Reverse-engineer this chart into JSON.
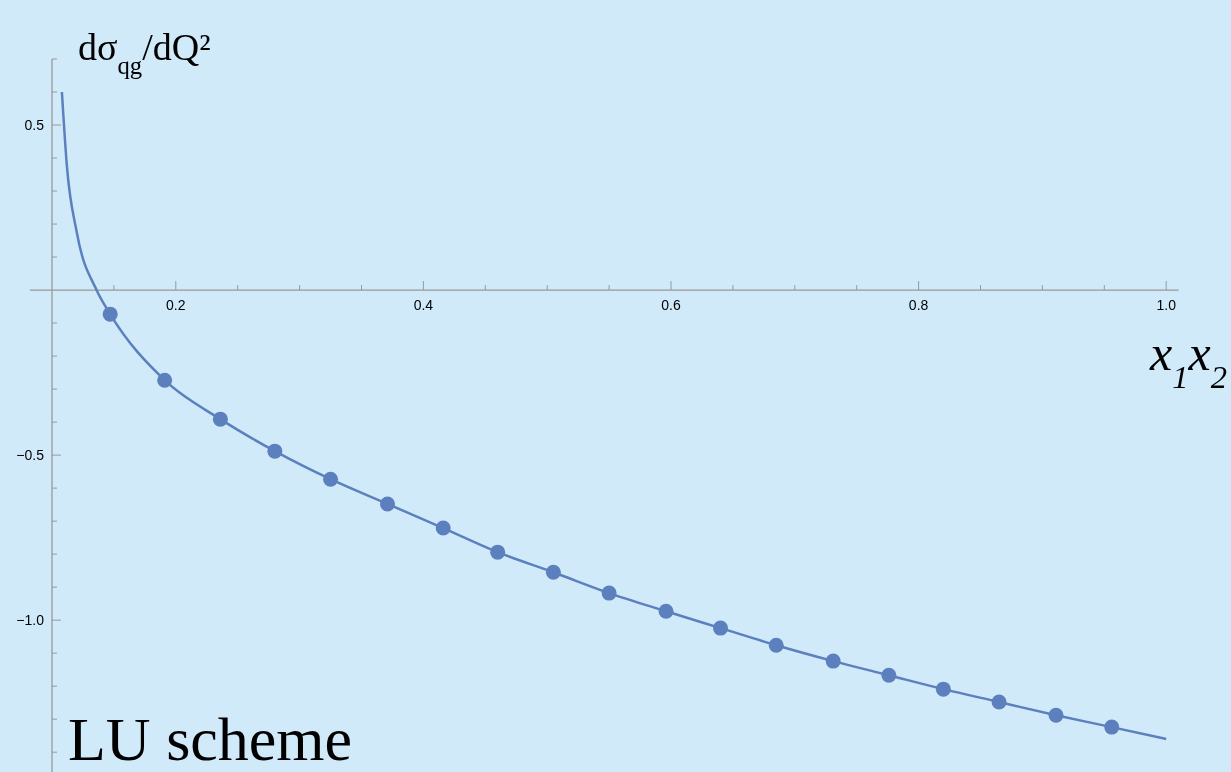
{
  "chart_data": {
    "type": "line",
    "xlabel": "x$_{1}$x$_{2}$",
    "ylabel": "dσ$_{qg}$/dQ²",
    "annotations": [
      "LU scheme"
    ],
    "xlim": [
      0.1,
      1.01
    ],
    "ylim": [
      -1.46,
      0.7
    ],
    "xticks": [
      {
        "value": 0.15,
        "label": null
      },
      0.2,
      {
        "value": 0.25,
        "label": null
      },
      {
        "value": 0.3,
        "label": null
      },
      {
        "value": 0.35,
        "label": null
      },
      0.4,
      {
        "value": 0.45,
        "label": null
      },
      {
        "value": 0.5,
        "label": null
      },
      {
        "value": 0.55,
        "label": null
      },
      0.6,
      {
        "value": 0.65,
        "label": null
      },
      {
        "value": 0.7,
        "label": null
      },
      {
        "value": 0.75,
        "label": null
      },
      0.8,
      {
        "value": 0.85,
        "label": null
      },
      {
        "value": 0.9,
        "label": null
      },
      {
        "value": 0.95,
        "label": null
      },
      {
        "value": 1.0,
        "label": "1.0"
      }
    ],
    "yticks": [
      {
        "value": 0.7,
        "label": null
      },
      {
        "value": 0.6,
        "label": null
      },
      0.5,
      {
        "value": 0.4,
        "label": null
      },
      {
        "value": 0.3,
        "label": null
      },
      {
        "value": 0.2,
        "label": null
      },
      {
        "value": 0.1,
        "label": null
      },
      {
        "value": -0.1,
        "label": null
      },
      {
        "value": -0.2,
        "label": null
      },
      {
        "value": -0.3,
        "label": null
      },
      {
        "value": -0.4,
        "label": null
      },
      {
        "value": -0.5,
        "label": "−0.5"
      },
      {
        "value": -0.6,
        "label": null
      },
      {
        "value": -0.7,
        "label": null
      },
      {
        "value": -0.8,
        "label": null
      },
      {
        "value": -0.9,
        "label": null
      },
      {
        "value": -1.0,
        "label": "−1.0"
      },
      {
        "value": -1.1,
        "label": null
      },
      {
        "value": -1.2,
        "label": null
      },
      {
        "value": -1.3,
        "label": null
      },
      {
        "value": -1.4,
        "label": null
      }
    ],
    "grid": false,
    "series": [
      {
        "color": "#5b80bd",
        "marker": "none",
        "line_style": "solid",
        "x": [
          0.108,
          0.112,
          0.12,
          0.136,
          0.147,
          0.191,
          0.236,
          0.28,
          0.325,
          0.371,
          0.416,
          0.46,
          0.505,
          0.55,
          0.596,
          0.64,
          0.685,
          0.731,
          0.776,
          0.82,
          0.865,
          0.911,
          0.956,
          1.0
        ],
        "values": [
          0.6,
          0.377,
          0.175,
          0,
          -0.073,
          -0.273,
          -0.391,
          -0.488,
          -0.573,
          -0.648,
          -0.721,
          -0.794,
          -0.855,
          -0.918,
          -0.973,
          -1.024,
          -1.076,
          -1.124,
          -1.167,
          -1.209,
          -1.248,
          -1.288,
          -1.324,
          -1.36
        ]
      },
      {
        "type": "scatter",
        "color": "#5b80bd",
        "marker": "circle",
        "x": [
          0.147,
          0.191,
          0.236,
          0.28,
          0.325,
          0.371,
          0.416,
          0.46,
          0.505,
          0.55,
          0.596,
          0.64,
          0.685,
          0.731,
          0.776,
          0.82,
          0.865,
          0.911,
          0.956
        ],
        "values": [
          -0.073,
          -0.273,
          -0.391,
          -0.488,
          -0.573,
          -0.648,
          -0.721,
          -0.794,
          -0.855,
          -0.918,
          -0.973,
          -1.024,
          -1.076,
          -1.124,
          -1.167,
          -1.209,
          -1.248,
          -1.288,
          -1.324
        ]
      }
    ]
  }
}
